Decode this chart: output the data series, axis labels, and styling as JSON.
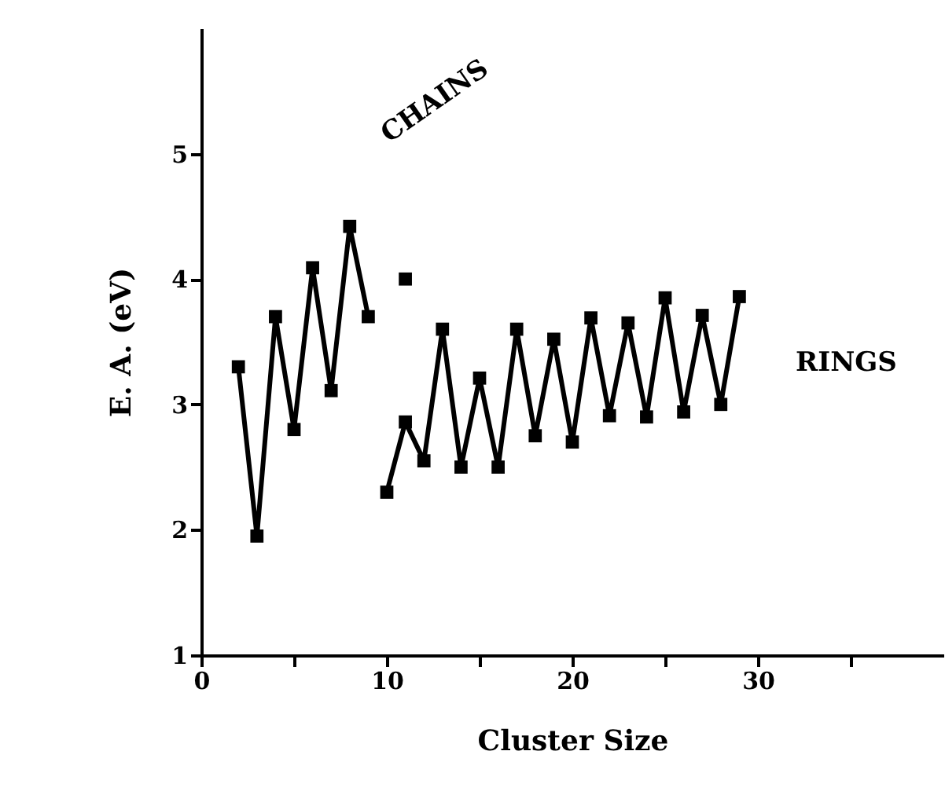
{
  "chart_data": {
    "type": "line",
    "xlabel": "Cluster Size",
    "ylabel": "E. A. (eV)",
    "xlim": [
      0,
      40
    ],
    "ylim": [
      1,
      6
    ],
    "xticks": [
      0,
      {
        "value": 5,
        "label": null
      },
      10,
      {
        "value": 15,
        "label": null
      },
      20,
      {
        "value": 25,
        "label": null
      },
      30,
      {
        "value": 35,
        "label": null
      }
    ],
    "yticks": [
      1,
      2,
      3,
      4,
      5
    ],
    "grid": false,
    "marker": "square",
    "line_style": "solid",
    "series": [
      {
        "name": "CHAINS",
        "color": "#000000",
        "x": [
          2,
          3,
          4,
          5,
          6,
          7,
          8,
          9
        ],
        "values": [
          3.3,
          1.95,
          3.7,
          2.8,
          4.09,
          3.11,
          4.42,
          3.7
        ]
      },
      {
        "type": "scatter",
        "color": "#000000",
        "x": [
          11
        ],
        "values": [
          4.0
        ]
      },
      {
        "name": "RINGS",
        "color": "#000000",
        "x": [
          10,
          11,
          12,
          13,
          14,
          15,
          16,
          17,
          18,
          19,
          20,
          21,
          22,
          23,
          24,
          25,
          26,
          27,
          28,
          29
        ],
        "values": [
          2.3,
          2.86,
          2.55,
          3.6,
          2.5,
          3.21,
          2.5,
          3.6,
          2.75,
          3.52,
          2.7,
          3.69,
          2.91,
          3.65,
          2.9,
          3.85,
          2.94,
          3.71,
          3.0,
          3.86
        ]
      }
    ]
  }
}
